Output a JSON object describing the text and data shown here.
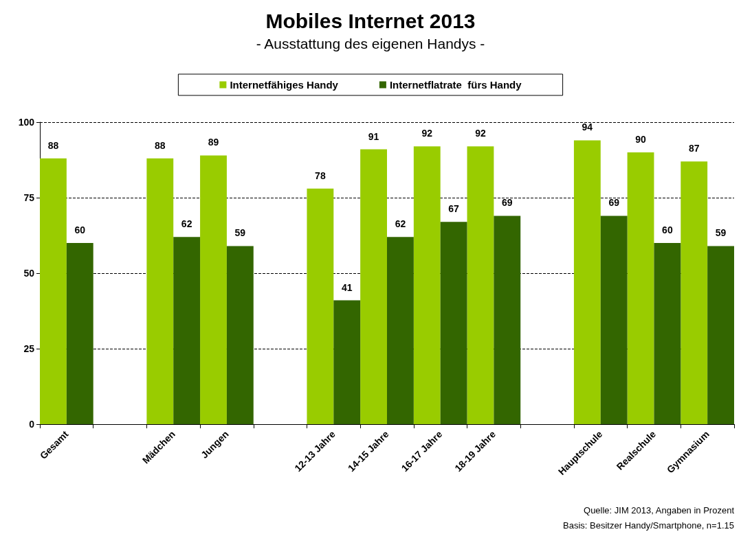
{
  "chart_data": {
    "type": "bar",
    "title": "Mobiles Internet 2013",
    "subtitle": "- Ausstattung des eigenen Handys -",
    "categories": [
      "Gesamt",
      null,
      "Mädchen",
      "Jungen",
      null,
      "12-13 Jahre",
      "14-15 Jahre",
      "16-17 Jahre",
      "18-19 Jahre",
      null,
      "Hauptschule",
      "Realschule",
      "Gymnasium"
    ],
    "series": [
      {
        "name": "Internetfähiges Handy",
        "color": "#99cc00",
        "values": [
          88,
          null,
          88,
          89,
          null,
          78,
          91,
          92,
          92,
          null,
          94,
          90,
          87
        ]
      },
      {
        "name": "Internetflatrate  fürs Handy",
        "color": "#336600",
        "values": [
          60,
          null,
          62,
          59,
          null,
          41,
          62,
          67,
          69,
          null,
          69,
          60,
          59
        ]
      }
    ],
    "ylim": [
      0,
      100
    ],
    "yticks": [
      0,
      25,
      50,
      75,
      100
    ],
    "grid": "y",
    "legend": "top",
    "data_labels": true,
    "annotations": [
      "Quelle: JIM 2013, Angaben in Prozent",
      "Basis: Besitzer Handy/Smartphone, n=1.15"
    ]
  }
}
